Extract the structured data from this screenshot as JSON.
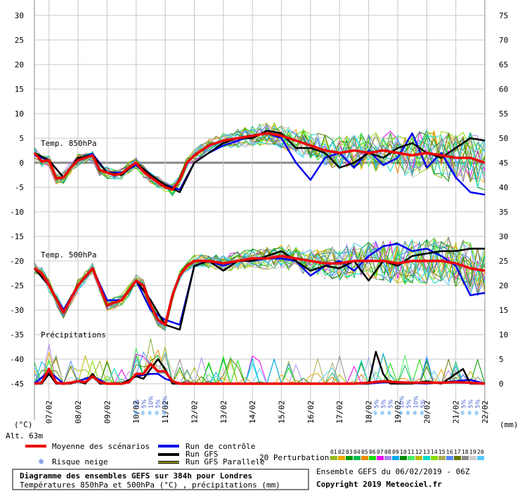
{
  "chart_data": {
    "type": "line",
    "title": "Diagramme des ensembles GEFS sur 384h pour Londres",
    "subtitle": "Températures 850hPa et 500hPa (°C) , précipitations (mm)",
    "run_info": "Ensemble GEFS du 06/02/2019 - 06Z",
    "copyright": "Copyright 2019 Meteociel.fr",
    "altitude": "Alt. 63m",
    "y_unit_left": "(°C)",
    "y_unit_right": "(mm)",
    "ylim_left": [
      -45,
      30
    ],
    "ylim_right": [
      0,
      75
    ],
    "yticks_left": [
      30,
      25,
      20,
      15,
      10,
      5,
      0,
      -5,
      -10,
      -15,
      -20,
      -25,
      -30,
      -35,
      -40,
      -45
    ],
    "yticks_right": [
      75,
      70,
      65,
      60,
      55,
      50,
      45,
      40,
      35,
      30,
      25,
      20,
      15,
      10,
      5,
      0
    ],
    "x_days": [
      "07/02",
      "08/02",
      "09/02",
      "10/02",
      "11/02",
      "12/02",
      "13/02",
      "14/02",
      "15/02",
      "16/02",
      "17/02",
      "18/02",
      "19/02",
      "20/02",
      "21/02",
      "22/02"
    ],
    "x_day_start": 6.5,
    "x_day_end": 22,
    "panel_labels": {
      "t850": "Temp. 850hPa",
      "t500": "Temp. 500hPa",
      "precip": "Précipitations"
    },
    "snow_risk_groups": [
      {
        "day": 10.5,
        "labels": [
          "5%",
          "5%",
          "10%",
          "5%",
          "10%"
        ]
      },
      {
        "day": 18.5,
        "labels": [
          "5%",
          "5%",
          "5%"
        ]
      },
      {
        "day": 19.5,
        "labels": [
          "10%",
          "5%",
          "10%",
          "5%"
        ]
      },
      {
        "day": 21.5,
        "labels": [
          "5%",
          "5%",
          "5%"
        ]
      }
    ],
    "legend": {
      "mean": "Moyenne des scénarios",
      "snow_risk": "Risque neige",
      "control": "Run de contrôle",
      "gfs": "Run GFS",
      "gfs_parallel": "Run GFS Parallele",
      "perturbations": "20 Perturbations",
      "pert_numbers": [
        "01",
        "02",
        "03",
        "04",
        "05",
        "06",
        "07",
        "08",
        "09",
        "10",
        "11",
        "12",
        "13",
        "14",
        "15",
        "16",
        "17",
        "18",
        "19",
        "20"
      ]
    },
    "colors": {
      "mean": "#ee0000",
      "control": "#0000ee",
      "gfs": "#000000",
      "gfs_parallel": "#999900",
      "perturbations": [
        "#99bb22",
        "#eeaa00",
        "#009900",
        "#00bb55",
        "#ee8800",
        "#11dd00",
        "#ee00ee",
        "#aa88ee",
        "#00aaee",
        "#008800",
        "#44ee66",
        "#bbbb00",
        "#00ddcc",
        "#88dd00",
        "#aaaa55",
        "#5588ff",
        "#667700",
        "#888888",
        "#cccccc",
        "#55ccff"
      ]
    },
    "series": [
      {
        "name": "Moyenne des scénarios",
        "panel": "t850",
        "x": [
          6.5,
          6.75,
          7,
          7.25,
          7.5,
          7.75,
          8,
          8.25,
          8.5,
          8.75,
          9,
          9.25,
          9.5,
          9.75,
          10,
          10.25,
          10.5,
          10.75,
          11,
          11.25,
          11.5,
          11.75,
          12,
          12.5,
          13,
          13.5,
          14,
          14.5,
          15,
          15.5,
          16,
          16.5,
          17,
          17.5,
          18,
          18.5,
          19,
          19.5,
          20,
          20.5,
          21,
          21.5,
          22
        ],
        "values": [
          2,
          0.3,
          0.5,
          -3.2,
          -3,
          -1,
          0.5,
          1,
          1.5,
          -1.5,
          -2,
          -2.5,
          -2.2,
          -1,
          0,
          -1.8,
          -3,
          -4,
          -5,
          -5.5,
          -3.5,
          0,
          1.5,
          3.5,
          4.5,
          5,
          5.5,
          6,
          5.5,
          4.5,
          3.5,
          2.5,
          2,
          2.5,
          2,
          2.5,
          2,
          1.5,
          2,
          1.5,
          1,
          1,
          0
        ]
      },
      {
        "name": "Run de contrôle",
        "panel": "t850",
        "x": [
          6.5,
          7,
          7.5,
          8,
          8.5,
          9,
          9.5,
          10,
          10.5,
          11,
          11.5,
          12,
          12.5,
          13,
          13.5,
          14,
          14.5,
          15,
          15.5,
          16,
          16.5,
          17,
          17.5,
          18,
          18.5,
          19,
          19.5,
          20,
          20.5,
          21,
          21.5,
          22
        ],
        "values": [
          1.5,
          0.5,
          -3,
          0.8,
          1.8,
          -2,
          -2,
          -0.5,
          -3,
          -4.5,
          -5.5,
          0,
          2,
          3.5,
          4.5,
          5.5,
          6,
          5,
          0,
          -3.5,
          1,
          2,
          -1,
          2.5,
          -0.5,
          1,
          6,
          -1,
          2,
          -3,
          -6,
          -6.5
        ]
      },
      {
        "name": "Run GFS",
        "panel": "t850",
        "x": [
          6.5,
          7,
          7.5,
          8,
          8.5,
          9,
          9.5,
          10,
          10.5,
          11,
          11.5,
          12,
          12.5,
          13,
          13.5,
          14,
          14.5,
          15,
          15.5,
          16,
          16.5,
          17,
          17.5,
          18,
          18.5,
          19,
          19.5,
          20,
          20.5,
          21,
          21.5,
          22
        ],
        "values": [
          2,
          0.5,
          -3,
          1,
          1.5,
          -2,
          -2.5,
          0,
          -2.5,
          -4.5,
          -6,
          0,
          2,
          4,
          5,
          5,
          6.5,
          6,
          3,
          3,
          2,
          -1,
          0,
          2,
          1,
          3,
          4,
          2,
          1,
          3,
          5,
          4.5
        ]
      },
      {
        "name": "Moyenne des scénarios",
        "panel": "t500",
        "x": [
          6.5,
          6.75,
          7,
          7.5,
          8,
          8.5,
          9,
          9.5,
          10,
          10.25,
          10.5,
          10.75,
          11,
          11.25,
          11.5,
          11.75,
          12,
          12.5,
          13,
          13.5,
          14,
          14.5,
          15,
          15.5,
          16,
          16.5,
          17,
          17.5,
          18,
          18.5,
          19,
          19.5,
          20,
          20.5,
          21,
          21.5,
          22
        ],
        "values": [
          -21.5,
          -22.5,
          -25,
          -30.5,
          -25,
          -21.5,
          -29,
          -28,
          -24,
          -25,
          -29,
          -32,
          -33,
          -27,
          -23,
          -21,
          -20,
          -20,
          -20.5,
          -20,
          -19.5,
          -19.5,
          -19,
          -19.5,
          -20,
          -20.5,
          -20.5,
          -20,
          -20,
          -20,
          -20.5,
          -20,
          -20,
          -20,
          -20.5,
          -21.5,
          -22
        ]
      },
      {
        "name": "Run GFS",
        "panel": "t500",
        "x": [
          6.5,
          7,
          7.5,
          8,
          8.5,
          9,
          9.5,
          10,
          10.5,
          11,
          11.5,
          12,
          12.5,
          13,
          13.5,
          14,
          14.5,
          15,
          15.5,
          16,
          16.5,
          17,
          17.5,
          18,
          18.5,
          19,
          19.5,
          20,
          20.5,
          21,
          21.5,
          22
        ],
        "values": [
          -21.5,
          -25,
          -30.5,
          -25,
          -21.5,
          -29,
          -28,
          -24,
          -28,
          -33,
          -34,
          -21,
          -20,
          -22,
          -20,
          -20,
          -19,
          -18,
          -20,
          -22,
          -21,
          -21.5,
          -20,
          -24,
          -20,
          -21,
          -19,
          -18.5,
          -18,
          -18,
          -17.5,
          -17.5
        ]
      },
      {
        "name": "Run de contrôle",
        "panel": "t500",
        "x": [
          6.5,
          7,
          7.5,
          8,
          8.5,
          9,
          9.5,
          10,
          10.5,
          11,
          11.5,
          12,
          12.5,
          13,
          13.5,
          14,
          14.5,
          15,
          15.5,
          16,
          16.5,
          17,
          17.5,
          18,
          18.5,
          19,
          19.5,
          20,
          20.5,
          21,
          21.5,
          22
        ],
        "values": [
          -21.5,
          -25,
          -30,
          -25,
          -21.5,
          -28,
          -28,
          -24,
          -30,
          -32,
          -33,
          -21,
          -20,
          -21,
          -20,
          -20,
          -19.5,
          -19.5,
          -20,
          -23,
          -21,
          -20,
          -22,
          -19,
          -17,
          -16.5,
          -18,
          -17.5,
          -19,
          -21,
          -27,
          -26.5
        ]
      },
      {
        "name": "Moyenne des scénarios",
        "panel": "precip",
        "x": [
          6.5,
          6.75,
          7,
          7.25,
          7.5,
          7.75,
          8,
          8.25,
          8.5,
          8.75,
          9,
          9.25,
          9.5,
          9.75,
          10,
          10.25,
          10.5,
          10.75,
          11,
          11.25,
          11.5,
          12,
          13,
          14,
          15,
          16,
          17,
          17.5,
          18,
          18.5,
          19,
          19.5,
          20,
          20.5,
          21,
          21.5,
          22
        ],
        "values": [
          0,
          0.2,
          3,
          0.2,
          0,
          0.2,
          0.5,
          0.3,
          1.5,
          0.3,
          0,
          0,
          0,
          0.3,
          2,
          2,
          4,
          2.5,
          2.5,
          0.5,
          0,
          0,
          0,
          0,
          0,
          0,
          0,
          0,
          0.2,
          0.5,
          0.3,
          0.2,
          0.2,
          0.2,
          0.3,
          0.2,
          0
        ]
      },
      {
        "name": "Run GFS",
        "panel": "precip",
        "x": [
          6.5,
          6.75,
          7,
          7.25,
          7.5,
          7.75,
          8,
          8.25,
          8.5,
          8.75,
          9,
          9.25,
          9.5,
          10,
          10.25,
          10.5,
          10.75,
          11,
          11.25,
          11.5,
          12,
          14,
          16,
          17,
          17.5,
          18,
          18.25,
          18.5,
          18.75,
          19,
          19.5,
          20,
          20.5,
          21,
          21.25,
          21.5,
          22
        ],
        "values": [
          0,
          0,
          2,
          0,
          0,
          0,
          0.5,
          0,
          2,
          0,
          0,
          0,
          0,
          1.5,
          1,
          3,
          5,
          3,
          0,
          0,
          0,
          0,
          0,
          0,
          0,
          0,
          6.5,
          2,
          0,
          0,
          0,
          0.5,
          0,
          2,
          3,
          0,
          0
        ]
      },
      {
        "name": "Run de contrôle",
        "panel": "precip",
        "x": [
          6.5,
          7,
          7.5,
          8,
          8.5,
          9,
          9.5,
          10,
          10.5,
          10.75,
          11,
          11.5,
          12,
          14,
          16,
          18,
          18.5,
          19,
          20,
          21,
          21.5,
          22
        ],
        "values": [
          0,
          2.5,
          0,
          0.5,
          1.5,
          0,
          0,
          1.5,
          2,
          2,
          1,
          0,
          0,
          0,
          0,
          0,
          0.3,
          0.2,
          0,
          0.5,
          0.8,
          0
        ]
      }
    ]
  }
}
